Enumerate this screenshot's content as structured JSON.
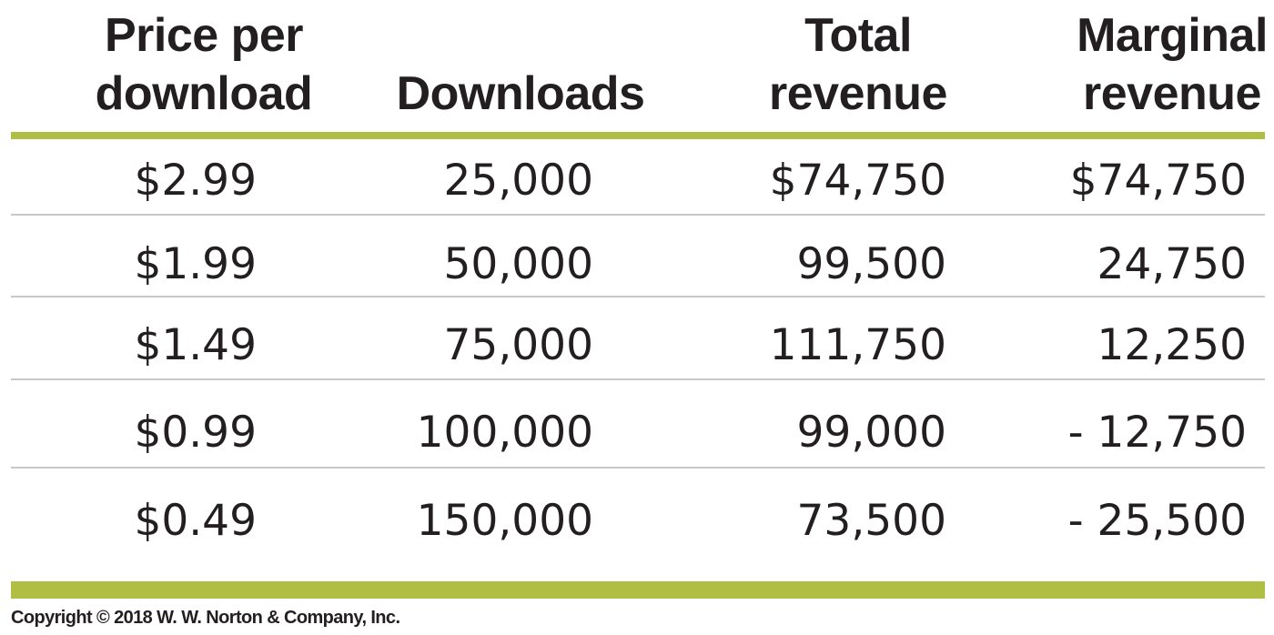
{
  "table": {
    "headers": {
      "price": [
        "Price per",
        "download"
      ],
      "downloads": [
        "",
        "Downloads"
      ],
      "total_revenue": [
        "Total",
        "revenue"
      ],
      "marginal_revenue": [
        "Marginal",
        "revenue"
      ]
    },
    "rows": [
      {
        "price": "$2.99",
        "downloads": "25,000",
        "total_revenue": "$74,750",
        "marginal_revenue": "$74,750"
      },
      {
        "price": "$1.99",
        "downloads": "50,000",
        "total_revenue": "99,500",
        "marginal_revenue": "24,750"
      },
      {
        "price": "$1.49",
        "downloads": "75,000",
        "total_revenue": "111,750",
        "marginal_revenue": "12,250"
      },
      {
        "price": "$0.99",
        "downloads": "100,000",
        "total_revenue": "99,000",
        "marginal_revenue": "- 12,750"
      },
      {
        "price": "$0.49",
        "downloads": "150,000",
        "total_revenue": "73,500",
        "marginal_revenue": "- 25,500"
      }
    ]
  },
  "colors": {
    "accent_rule": "#b0bf44",
    "row_separator": "#c8c8c8",
    "text": "#231f20"
  },
  "footer": {
    "copyright": "Copyright © 2018 W. W. Norton & Company, Inc."
  }
}
